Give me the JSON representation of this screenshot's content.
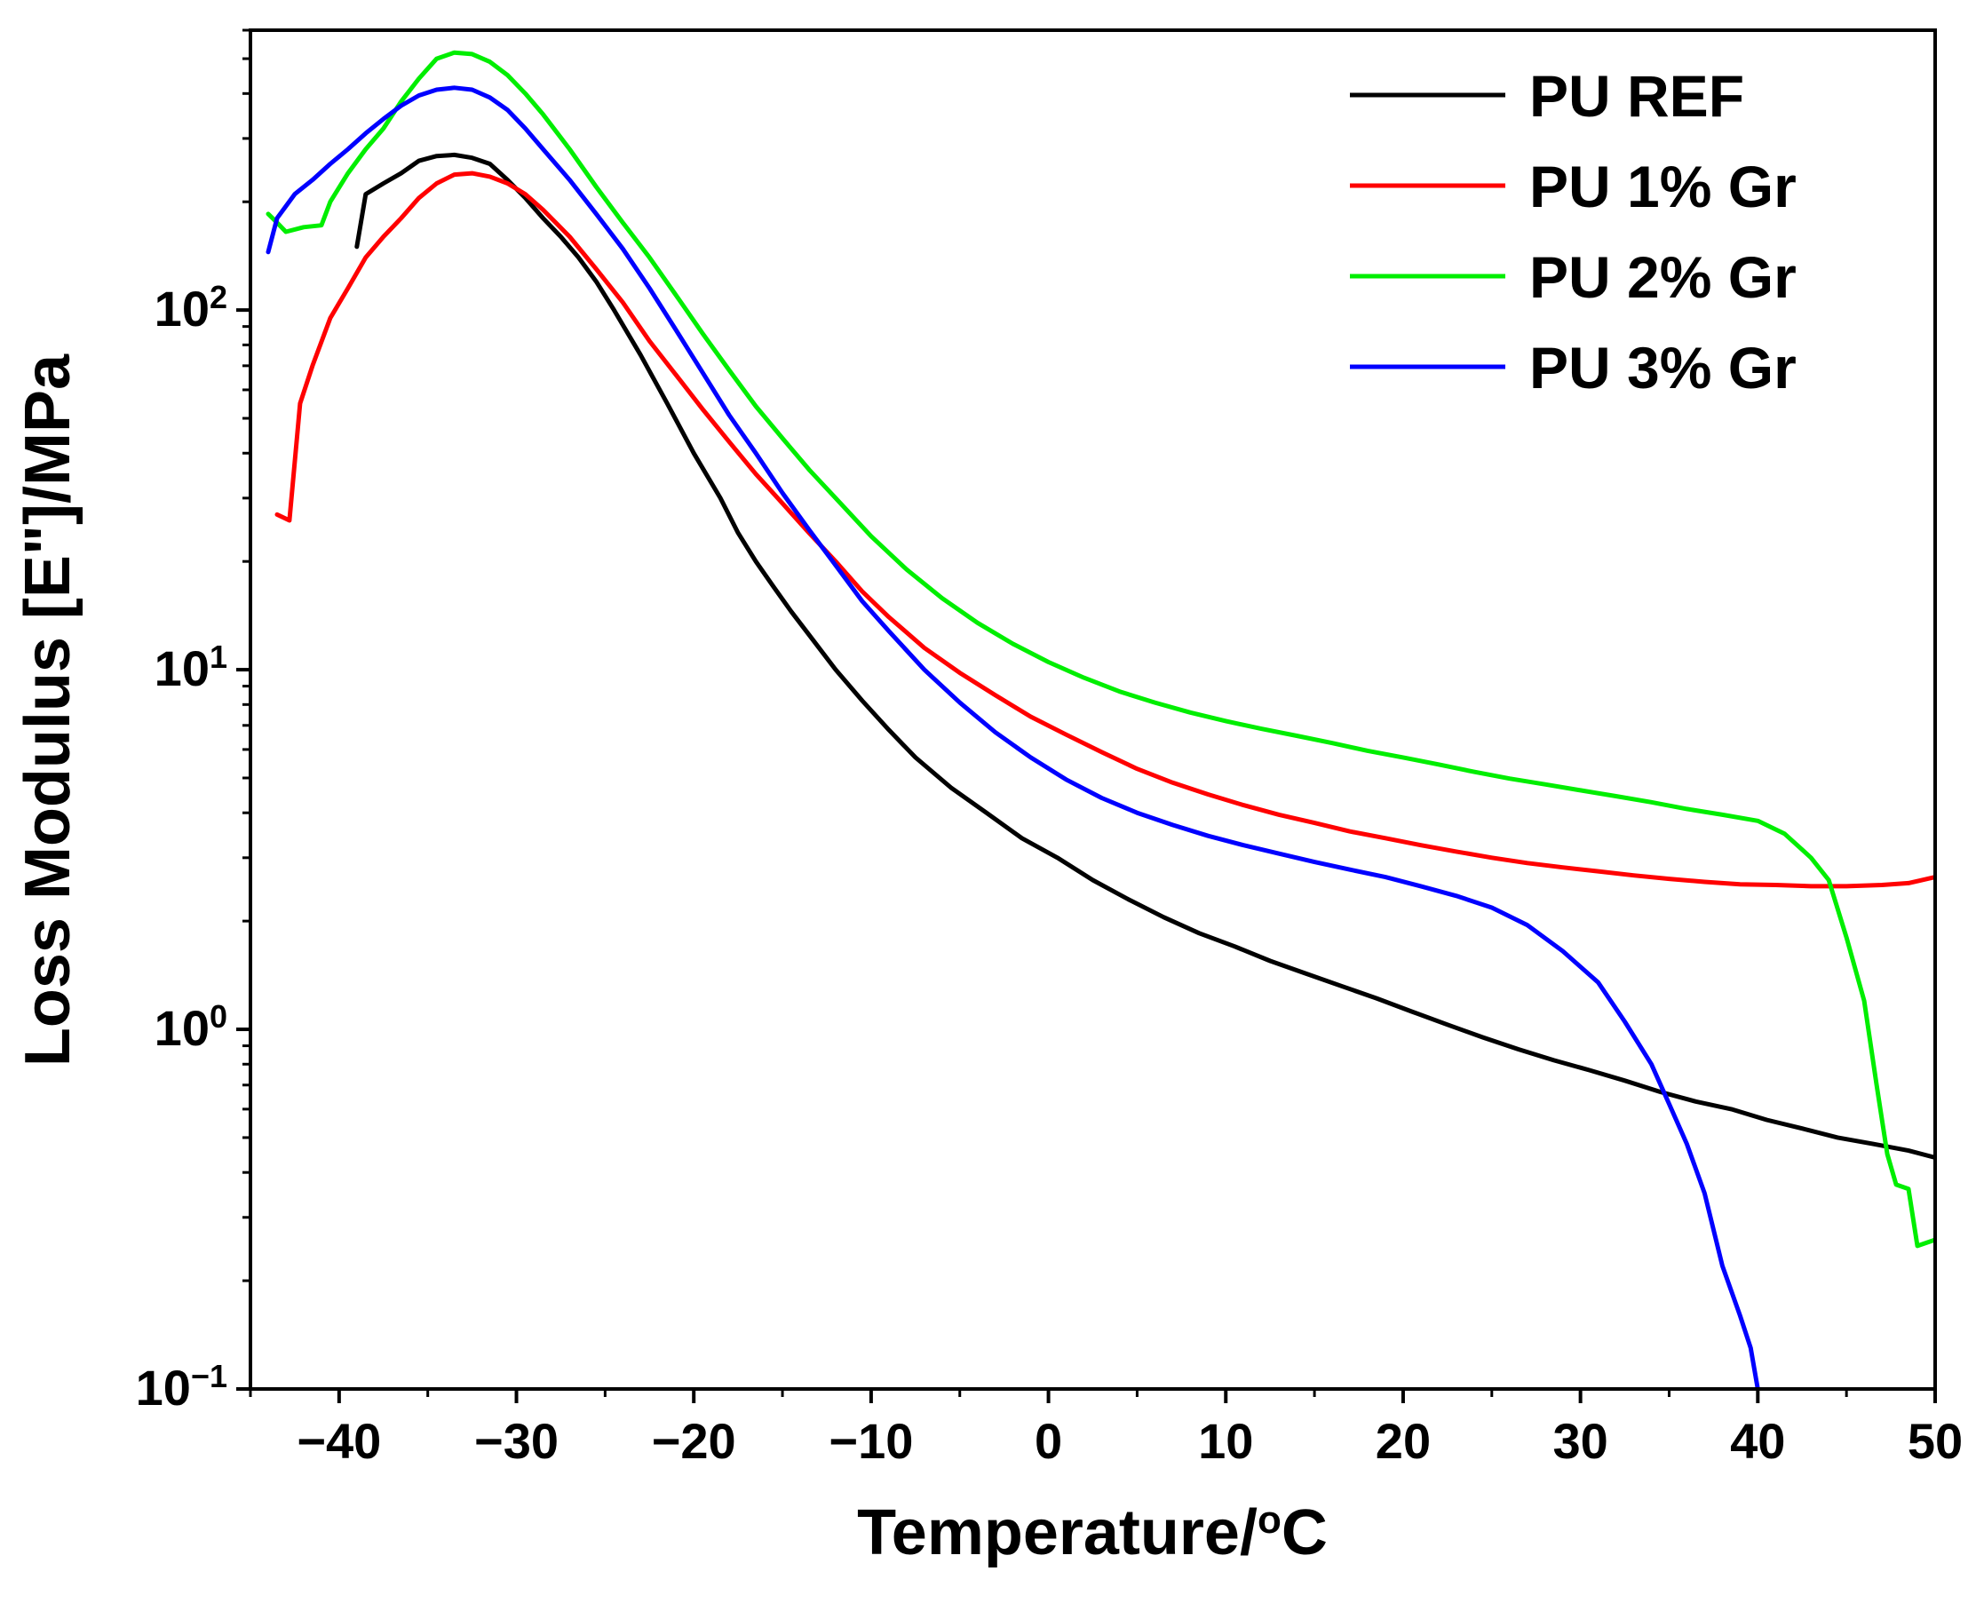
{
  "chart_data": {
    "type": "line",
    "title": "",
    "xlabel": "Temperature/",
    "xlabel_sup": "o",
    "xlabel_suffix": "C",
    "ylabel": "Loss Modulus [E\"]/MPa",
    "xlim": [
      -45,
      50
    ],
    "ylim": [
      0.1,
      600
    ],
    "yscale": "log",
    "grid": false,
    "legend_position": "top-right",
    "xticks": [
      -40,
      -30,
      -20,
      -10,
      0,
      10,
      20,
      30,
      40,
      50
    ],
    "xtick_labels": [
      "−40",
      "−30",
      "−20",
      "−10",
      "0",
      "10",
      "20",
      "30",
      "40",
      "50"
    ],
    "yticks": [
      {
        "value": 0.1,
        "base": "10",
        "exp": "−1"
      },
      {
        "value": 1,
        "base": "10",
        "exp": "0"
      },
      {
        "value": 10,
        "base": "10",
        "exp": "1"
      },
      {
        "value": 100,
        "base": "10",
        "exp": "2"
      }
    ],
    "series": [
      {
        "name": "PU REF",
        "color": "#000000",
        "x": [
          -39,
          -38.5,
          -37.5,
          -36.5,
          -35.5,
          -34.5,
          -33.5,
          -32.5,
          -31.5,
          -30.5,
          -29.5,
          -28.5,
          -27.5,
          -26.5,
          -25.5,
          -24.5,
          -23,
          -21.5,
          -20,
          -18.5,
          -17.5,
          -16.5,
          -15.5,
          -14.5,
          -13.5,
          -12,
          -10.5,
          -9,
          -7.5,
          -5.5,
          -3.5,
          -1.5,
          0.5,
          2.5,
          4.5,
          6.5,
          8.5,
          10.5,
          12.5,
          14.5,
          16.5,
          18.5,
          20.5,
          22.5,
          24.5,
          26.5,
          28.5,
          30.5,
          32.5,
          34.5,
          36.5,
          38.5,
          40.5,
          42.5,
          44.5,
          46.5,
          48.5,
          50
        ],
        "y": [
          150,
          210,
          225,
          240,
          260,
          268,
          270,
          265,
          255,
          230,
          205,
          180,
          160,
          140,
          120,
          100,
          75,
          55,
          40,
          30,
          24,
          20,
          17,
          14.5,
          12.5,
          10,
          8.2,
          6.8,
          5.7,
          4.7,
          4,
          3.4,
          3,
          2.6,
          2.3,
          2.05,
          1.85,
          1.7,
          1.55,
          1.43,
          1.32,
          1.22,
          1.12,
          1.03,
          0.95,
          0.88,
          0.82,
          0.77,
          0.72,
          0.67,
          0.63,
          0.6,
          0.56,
          0.53,
          0.5,
          0.48,
          0.46,
          0.44
        ]
      },
      {
        "name": "PU 1% Gr",
        "color": "#ff0000",
        "x": [
          -43.5,
          -42.8,
          -42.2,
          -41.5,
          -40.5,
          -39.5,
          -38.5,
          -37.5,
          -36.5,
          -35.5,
          -34.5,
          -33.5,
          -32.5,
          -31.5,
          -30.5,
          -29.5,
          -28.5,
          -27,
          -25.5,
          -24,
          -22.5,
          -21,
          -19.5,
          -18,
          -16.5,
          -15,
          -13.5,
          -12,
          -10.5,
          -9,
          -7,
          -5,
          -3,
          -1,
          1,
          3,
          5,
          7,
          9,
          11,
          13,
          15,
          17,
          19,
          21,
          23,
          25,
          27,
          29,
          31,
          33,
          35,
          37,
          39,
          41,
          43,
          45,
          47,
          48.5,
          50
        ],
        "y": [
          27,
          26,
          55,
          70,
          95,
          115,
          140,
          160,
          180,
          205,
          225,
          238,
          240,
          235,
          225,
          210,
          190,
          160,
          130,
          105,
          82,
          66,
          53,
          43,
          35,
          29,
          24,
          20,
          16.5,
          14,
          11.5,
          9.8,
          8.5,
          7.4,
          6.6,
          5.9,
          5.3,
          4.85,
          4.5,
          4.2,
          3.95,
          3.75,
          3.55,
          3.4,
          3.25,
          3.12,
          3.0,
          2.9,
          2.82,
          2.75,
          2.68,
          2.62,
          2.57,
          2.53,
          2.52,
          2.5,
          2.5,
          2.52,
          2.55,
          2.65
        ]
      },
      {
        "name": "PU 2% Gr",
        "color": "#00ee00",
        "x": [
          -44,
          -43.5,
          -43,
          -42,
          -41,
          -40.5,
          -39.5,
          -38.5,
          -37.5,
          -36.5,
          -35.5,
          -34.5,
          -33.5,
          -32.5,
          -31.5,
          -30.5,
          -29.5,
          -28.5,
          -27,
          -25.5,
          -24,
          -22.5,
          -21,
          -19.5,
          -18,
          -16.5,
          -15,
          -13.5,
          -12,
          -10,
          -8,
          -6,
          -4,
          -2,
          0,
          2,
          4,
          6,
          8,
          10,
          12,
          14,
          16,
          18,
          20,
          22,
          24,
          26,
          28,
          30,
          32,
          34,
          36,
          38,
          40,
          41.5,
          43,
          44,
          45,
          46,
          46.7,
          47.3,
          47.8,
          48.5,
          49,
          50
        ],
        "y": [
          185,
          175,
          165,
          170,
          172,
          200,
          240,
          280,
          320,
          380,
          440,
          500,
          520,
          515,
          490,
          450,
          400,
          350,
          280,
          220,
          175,
          140,
          110,
          86,
          68,
          54,
          44,
          36,
          30,
          23.5,
          19,
          15.8,
          13.5,
          11.8,
          10.5,
          9.5,
          8.7,
          8.1,
          7.6,
          7.2,
          6.85,
          6.55,
          6.25,
          5.95,
          5.7,
          5.45,
          5.2,
          4.98,
          4.8,
          4.62,
          4.45,
          4.28,
          4.1,
          3.95,
          3.8,
          3.5,
          3.0,
          2.6,
          1.8,
          1.2,
          0.7,
          0.45,
          0.37,
          0.36,
          0.25,
          0.26
        ]
      },
      {
        "name": "PU 3% Gr",
        "color": "#0000ff",
        "x": [
          -44,
          -43.5,
          -42.5,
          -41.5,
          -40.5,
          -39.5,
          -38.5,
          -37.5,
          -36.5,
          -35.5,
          -34.5,
          -33.5,
          -32.5,
          -31.5,
          -30.5,
          -29.5,
          -28.5,
          -27,
          -25.5,
          -24,
          -22.5,
          -21,
          -19.5,
          -18,
          -16.5,
          -15,
          -13.5,
          -12,
          -10.5,
          -9,
          -7,
          -5,
          -3,
          -1,
          1,
          3,
          5,
          7,
          9,
          11,
          13,
          15,
          17,
          19,
          21,
          23,
          25,
          27,
          29,
          31,
          32.5,
          34,
          35,
          36,
          37,
          38,
          39,
          39.6,
          40
        ],
        "y": [
          145,
          180,
          210,
          230,
          255,
          280,
          310,
          340,
          370,
          395,
          410,
          415,
          410,
          390,
          360,
          320,
          280,
          230,
          185,
          148,
          115,
          88,
          67,
          51,
          40,
          31,
          24.5,
          19.5,
          15.5,
          12.8,
          10,
          8.1,
          6.7,
          5.7,
          4.95,
          4.4,
          4.0,
          3.7,
          3.45,
          3.25,
          3.08,
          2.92,
          2.78,
          2.65,
          2.5,
          2.35,
          2.18,
          1.95,
          1.65,
          1.35,
          1.05,
          0.8,
          0.62,
          0.48,
          0.35,
          0.22,
          0.16,
          0.13,
          0.1
        ]
      }
    ]
  }
}
